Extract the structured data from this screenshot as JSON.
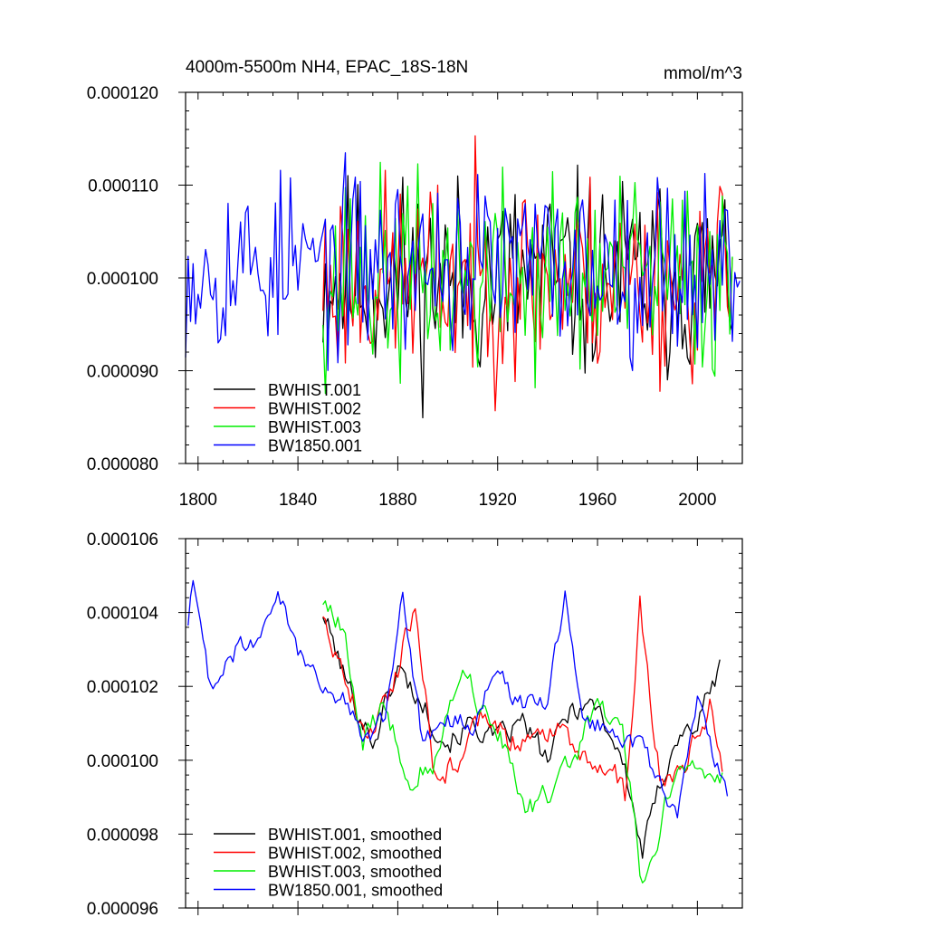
{
  "chart_data": [
    {
      "type": "line",
      "title": "4000m-5500m NH4, EPAC_18S-18N",
      "units": "mmol/m^3",
      "xlim": [
        1795,
        2018
      ],
      "ylim": [
        8e-05,
        0.00012
      ],
      "x_ticks": [
        1800,
        1840,
        1880,
        1920,
        1960,
        2000
      ],
      "y_ticks": [
        "0.000080",
        "0.000090",
        "0.000100",
        "0.000110",
        "0.000120"
      ],
      "y_tick_values": [
        8e-05,
        9e-05,
        0.0001,
        0.00011,
        0.00012
      ],
      "legend_position": "bottom-left",
      "series": [
        {
          "name": "BWHIST.001",
          "color": "#000000",
          "x_start": 1850,
          "x_end": 2014,
          "mean": 0.0001,
          "amp": 5.5e-06,
          "min": 8.2e-05,
          "max": 0.000116,
          "seed": 11,
          "smooth_wave": 0
        },
        {
          "name": "BWHIST.002",
          "color": "#ff0000",
          "x_start": 1850,
          "x_end": 2014,
          "mean": 0.0001,
          "amp": 5.5e-06,
          "min": 8.4e-05,
          "max": 0.0001165,
          "seed": 23,
          "smooth_wave": 0
        },
        {
          "name": "BWHIST.003",
          "color": "#00ee00",
          "x_start": 1850,
          "x_end": 2014,
          "mean": 0.0001,
          "amp": 5.5e-06,
          "min": 8.45e-05,
          "max": 0.000117,
          "seed": 37,
          "smooth_wave": 0
        },
        {
          "name": "BW1850.001",
          "color": "#0000ff",
          "x_start": 1795,
          "x_end": 2017,
          "mean": 0.0001015,
          "amp": 4.8e-06,
          "min": 8.7e-05,
          "max": 0.00012,
          "seed": 53,
          "smooth_wave": 0
        }
      ]
    },
    {
      "type": "line",
      "title": "",
      "units": "",
      "xlim": [
        1795,
        2018
      ],
      "ylim": [
        9.6e-05,
        0.000106
      ],
      "x_ticks": [
        1800,
        1840,
        1880,
        1920,
        1960,
        2000
      ],
      "show_x_tick_labels": false,
      "y_ticks": [
        "0.000096",
        "0.000098",
        "0.000100",
        "0.000102",
        "0.000104",
        "0.000106"
      ],
      "y_tick_values": [
        9.6e-05,
        9.8e-05,
        0.0001,
        0.000102,
        0.000104,
        0.000106
      ],
      "legend_position": "bottom-left",
      "series": [
        {
          "name": "BWHIST.001, smoothed",
          "color": "#000000",
          "x_start": 1850,
          "x_end": 2009,
          "anchors": [
            [
              1850,
              0.000104
            ],
            [
              1860,
              0.000102
            ],
            [
              1870,
              0.0001005
            ],
            [
              1880,
              0.0001025
            ],
            [
              1890,
              0.0001015
            ],
            [
              1900,
              0.0001005
            ],
            [
              1910,
              0.000101
            ],
            [
              1920,
              0.0001005
            ],
            [
              1930,
              0.000101
            ],
            [
              1940,
              0.0001
            ],
            [
              1950,
              0.0001015
            ],
            [
              1960,
              0.0001015
            ],
            [
              1970,
              0.0001
            ],
            [
              1978,
              9.75e-05
            ],
            [
              1990,
              0.0001005
            ],
            [
              2000,
              0.000101
            ],
            [
              2009,
              0.0001025
            ]
          ],
          "noise": 6e-07,
          "seed": 101
        },
        {
          "name": "BWHIST.002, smoothed",
          "color": "#ff0000",
          "x_start": 1850,
          "x_end": 2010,
          "anchors": [
            [
              1850,
              0.000104
            ],
            [
              1858,
              0.0001025
            ],
            [
              1868,
              0.0001005
            ],
            [
              1880,
              0.0001025
            ],
            [
              1887,
              0.0001043
            ],
            [
              1895,
              9.95e-05
            ],
            [
              1905,
              0.0001
            ],
            [
              1915,
              0.0001015
            ],
            [
              1925,
              0.0001005
            ],
            [
              1935,
              0.0001005
            ],
            [
              1945,
              0.000101
            ],
            [
              1955,
              0.0001
            ],
            [
              1965,
              0.0001
            ],
            [
              1971,
              9.9e-05
            ],
            [
              1977,
              0.0001042
            ],
            [
              1985,
              9.95e-05
            ],
            [
              1995,
              0.0001
            ],
            [
              2005,
              0.0001015
            ],
            [
              2010,
              0.0001
            ]
          ],
          "noise": 6e-07,
          "seed": 202
        },
        {
          "name": "BWHIST.003, smoothed",
          "color": "#00ee00",
          "x_start": 1850,
          "x_end": 2010,
          "anchors": [
            [
              1850,
              0.0001043
            ],
            [
              1858,
              0.0001035
            ],
            [
              1866,
              0.0001005
            ],
            [
              1875,
              0.0001015
            ],
            [
              1885,
              9.95e-05
            ],
            [
              1895,
              0.0001
            ],
            [
              1905,
              0.0001025
            ],
            [
              1913,
              0.0001015
            ],
            [
              1922,
              0.0001005
            ],
            [
              1931,
              9.85e-05
            ],
            [
              1940,
              9.9e-05
            ],
            [
              1950,
              0.0001
            ],
            [
              1960,
              0.0001015
            ],
            [
              1970,
              0.000101
            ],
            [
              1978,
              9.65e-05
            ],
            [
              1988,
              9.9e-05
            ],
            [
              1998,
              0.0001
            ],
            [
              2010,
              9.95e-05
            ]
          ],
          "noise": 6e-07,
          "seed": 303
        },
        {
          "name": "BW1850.001, smoothed",
          "color": "#0000ff",
          "x_start": 1796,
          "x_end": 2012,
          "anchors": [
            [
              1796,
              0.0001037
            ],
            [
              1798,
              0.0001048
            ],
            [
              1805,
              0.000102
            ],
            [
              1815,
              0.000103
            ],
            [
              1825,
              0.0001033
            ],
            [
              1832,
              0.0001045
            ],
            [
              1840,
              0.000103
            ],
            [
              1850,
              0.000102
            ],
            [
              1860,
              0.0001015
            ],
            [
              1867,
              0.0001005
            ],
            [
              1875,
              0.0001012
            ],
            [
              1882,
              0.0001045
            ],
            [
              1890,
              0.0001005
            ],
            [
              1900,
              0.000101
            ],
            [
              1910,
              0.000101
            ],
            [
              1918,
              0.0001025
            ],
            [
              1928,
              0.0001015
            ],
            [
              1940,
              0.0001015
            ],
            [
              1947,
              0.0001045
            ],
            [
              1955,
              0.000101
            ],
            [
              1965,
              0.000101
            ],
            [
              1975,
              0.0001005
            ],
            [
              1985,
              9.95e-05
            ],
            [
              1992,
              9.85e-05
            ],
            [
              2000,
              0.0001015
            ],
            [
              2012,
              9.9e-05
            ]
          ],
          "noise": 5e-07,
          "seed": 404
        }
      ]
    }
  ]
}
